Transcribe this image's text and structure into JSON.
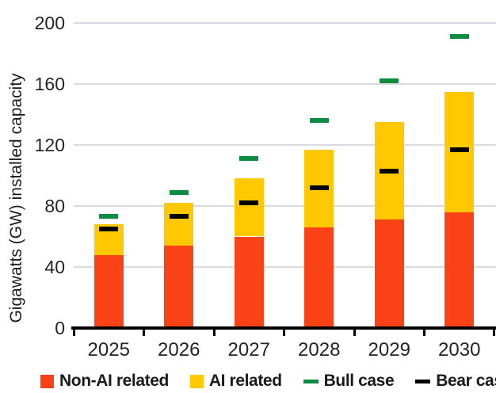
{
  "chart_data": {
    "type": "bar",
    "stacked": true,
    "title": "",
    "xlabel": "",
    "ylabel": "Gigawatts (GW) installed capacity",
    "ylim": [
      0,
      200
    ],
    "yticks": [
      0,
      40,
      80,
      120,
      160,
      200
    ],
    "grid": "horizontal",
    "legend_position": "bottom",
    "categories": [
      "2025",
      "2026",
      "2027",
      "2028",
      "2029",
      "2030"
    ],
    "series": [
      {
        "name": "Non-AI related",
        "role": "stack-segment",
        "marker": "square",
        "color": "#F94316",
        "values": [
          48,
          54,
          60,
          66,
          71,
          76
        ]
      },
      {
        "name": "AI related",
        "role": "stack-segment",
        "marker": "square",
        "color": "#FFC800",
        "values": [
          20,
          28,
          38,
          51,
          64,
          79
        ]
      },
      {
        "name": "Bull case",
        "role": "dash-marker",
        "marker": "dash",
        "color": "#0E8C42",
        "values": [
          73,
          89,
          111,
          136,
          162,
          191
        ]
      },
      {
        "name": "Bear case",
        "role": "dash-marker",
        "marker": "dash",
        "color": "#000000",
        "values": [
          65,
          73,
          82,
          92,
          103,
          117
        ]
      }
    ],
    "stack_totals": [
      68,
      82,
      98,
      117,
      135,
      155
    ]
  },
  "colors": {
    "background": "#FFFFFF",
    "gridline": "#DADAE0",
    "axis": "#000000",
    "tick_text": "#252525",
    "non_ai_bar": "#F94316",
    "ai_bar": "#FFC800",
    "bull_dash": "#0E8C42",
    "bear_dash": "#000000"
  }
}
